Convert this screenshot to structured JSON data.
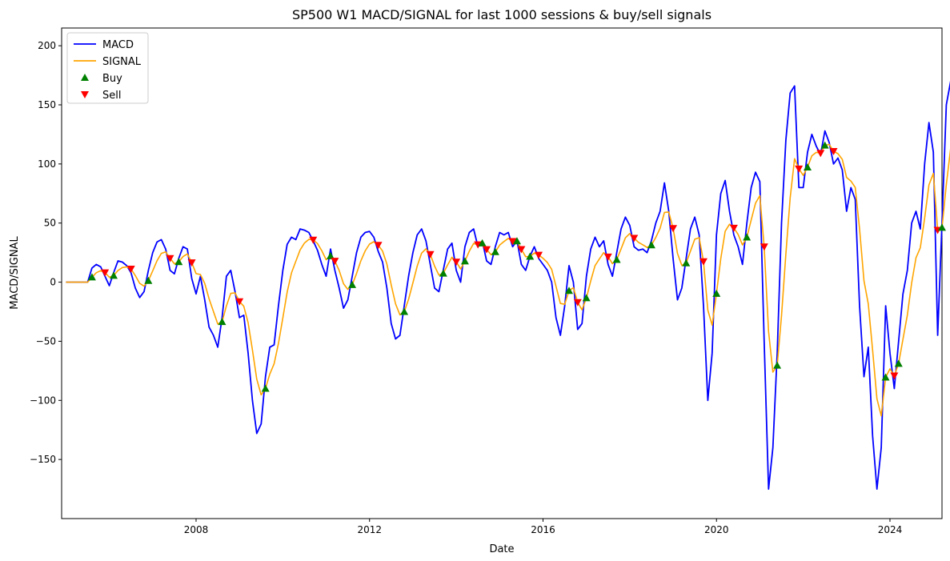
{
  "chart_data": {
    "type": "line",
    "title": "SP500 W1 MACD/SIGNAL for last 1000 sessions & buy/sell signals",
    "xlabel": "Date",
    "ylabel": "MACD/SIGNAL",
    "x_range": [
      2004.9,
      2025.2
    ],
    "ylim": [
      -200,
      215
    ],
    "x_ticks": [
      2008,
      2012,
      2016,
      2020,
      2024
    ],
    "x_tick_labels": [
      "2008",
      "2012",
      "2016",
      "2020",
      "2024"
    ],
    "y_ticks": [
      -150,
      -100,
      -50,
      0,
      50,
      100,
      150,
      200
    ],
    "y_tick_labels": [
      "−150",
      "−100",
      "−50",
      "0",
      "50",
      "100",
      "150",
      "200"
    ],
    "grid": false,
    "legend_position": "upper-left",
    "legend": [
      {
        "label": "MACD",
        "kind": "line",
        "color": "#0000ff"
      },
      {
        "label": "SIGNAL",
        "kind": "line",
        "color": "#ffa500"
      },
      {
        "label": "Buy",
        "kind": "marker-up",
        "color": "#008000"
      },
      {
        "label": "Sell",
        "kind": "marker-down",
        "color": "#ff0000"
      }
    ],
    "series": [
      {
        "name": "MACD",
        "color": "#0000ff",
        "points": [
          [
            2005.0,
            0
          ],
          [
            2005.5,
            0
          ],
          [
            2005.6,
            12
          ],
          [
            2005.7,
            15
          ],
          [
            2005.8,
            13
          ],
          [
            2005.9,
            5
          ],
          [
            2006.0,
            -3
          ],
          [
            2006.1,
            8
          ],
          [
            2006.2,
            18
          ],
          [
            2006.3,
            17
          ],
          [
            2006.4,
            14
          ],
          [
            2006.5,
            8
          ],
          [
            2006.6,
            -5
          ],
          [
            2006.7,
            -13
          ],
          [
            2006.8,
            -8
          ],
          [
            2006.9,
            10
          ],
          [
            2007.0,
            25
          ],
          [
            2007.1,
            34
          ],
          [
            2007.2,
            36
          ],
          [
            2007.3,
            28
          ],
          [
            2007.4,
            10
          ],
          [
            2007.5,
            7
          ],
          [
            2007.6,
            20
          ],
          [
            2007.7,
            30
          ],
          [
            2007.8,
            28
          ],
          [
            2007.9,
            3
          ],
          [
            2008.0,
            -10
          ],
          [
            2008.1,
            5
          ],
          [
            2008.2,
            -15
          ],
          [
            2008.3,
            -38
          ],
          [
            2008.4,
            -45
          ],
          [
            2008.5,
            -55
          ],
          [
            2008.6,
            -30
          ],
          [
            2008.7,
            5
          ],
          [
            2008.8,
            10
          ],
          [
            2008.9,
            -8
          ],
          [
            2009.0,
            -30
          ],
          [
            2009.1,
            -28
          ],
          [
            2009.2,
            -60
          ],
          [
            2009.3,
            -100
          ],
          [
            2009.4,
            -128
          ],
          [
            2009.5,
            -120
          ],
          [
            2009.6,
            -80
          ],
          [
            2009.7,
            -55
          ],
          [
            2009.8,
            -53
          ],
          [
            2009.9,
            -20
          ],
          [
            2010.0,
            10
          ],
          [
            2010.1,
            32
          ],
          [
            2010.2,
            38
          ],
          [
            2010.3,
            36
          ],
          [
            2010.4,
            45
          ],
          [
            2010.5,
            44
          ],
          [
            2010.6,
            42
          ],
          [
            2010.7,
            35
          ],
          [
            2010.8,
            27
          ],
          [
            2010.9,
            15
          ],
          [
            2011.0,
            5
          ],
          [
            2011.1,
            28
          ],
          [
            2011.2,
            10
          ],
          [
            2011.3,
            -5
          ],
          [
            2011.4,
            -22
          ],
          [
            2011.5,
            -15
          ],
          [
            2011.6,
            5
          ],
          [
            2011.7,
            25
          ],
          [
            2011.8,
            38
          ],
          [
            2011.9,
            42
          ],
          [
            2012.0,
            43
          ],
          [
            2012.1,
            38
          ],
          [
            2012.2,
            26
          ],
          [
            2012.3,
            17
          ],
          [
            2012.4,
            -5
          ],
          [
            2012.5,
            -35
          ],
          [
            2012.6,
            -48
          ],
          [
            2012.7,
            -45
          ],
          [
            2012.8,
            -20
          ],
          [
            2012.9,
            5
          ],
          [
            2013.0,
            25
          ],
          [
            2013.1,
            40
          ],
          [
            2013.2,
            45
          ],
          [
            2013.3,
            35
          ],
          [
            2013.4,
            15
          ],
          [
            2013.5,
            -5
          ],
          [
            2013.6,
            -8
          ],
          [
            2013.7,
            10
          ],
          [
            2013.8,
            28
          ],
          [
            2013.9,
            33
          ],
          [
            2014.0,
            10
          ],
          [
            2014.1,
            0
          ],
          [
            2014.2,
            30
          ],
          [
            2014.3,
            42
          ],
          [
            2014.4,
            45
          ],
          [
            2014.5,
            30
          ],
          [
            2014.6,
            35
          ],
          [
            2014.7,
            18
          ],
          [
            2014.8,
            15
          ],
          [
            2014.9,
            30
          ],
          [
            2015.0,
            42
          ],
          [
            2015.1,
            40
          ],
          [
            2015.2,
            42
          ],
          [
            2015.3,
            30
          ],
          [
            2015.4,
            35
          ],
          [
            2015.5,
            15
          ],
          [
            2015.6,
            10
          ],
          [
            2015.7,
            22
          ],
          [
            2015.8,
            30
          ],
          [
            2015.9,
            20
          ],
          [
            2016.0,
            15
          ],
          [
            2016.1,
            10
          ],
          [
            2016.2,
            0
          ],
          [
            2016.3,
            -30
          ],
          [
            2016.4,
            -45
          ],
          [
            2016.5,
            -20
          ],
          [
            2016.6,
            14
          ],
          [
            2016.7,
            0
          ],
          [
            2016.8,
            -40
          ],
          [
            2016.9,
            -35
          ],
          [
            2017.0,
            5
          ],
          [
            2017.1,
            28
          ],
          [
            2017.2,
            38
          ],
          [
            2017.3,
            30
          ],
          [
            2017.4,
            35
          ],
          [
            2017.5,
            15
          ],
          [
            2017.6,
            5
          ],
          [
            2017.7,
            25
          ],
          [
            2017.8,
            45
          ],
          [
            2017.9,
            55
          ],
          [
            2018.0,
            48
          ],
          [
            2018.1,
            30
          ],
          [
            2018.2,
            27
          ],
          [
            2018.3,
            28
          ],
          [
            2018.4,
            25
          ],
          [
            2018.5,
            35
          ],
          [
            2018.6,
            50
          ],
          [
            2018.7,
            60
          ],
          [
            2018.8,
            84
          ],
          [
            2018.9,
            60
          ],
          [
            2019.0,
            20
          ],
          [
            2019.1,
            -15
          ],
          [
            2019.2,
            -5
          ],
          [
            2019.3,
            20
          ],
          [
            2019.4,
            45
          ],
          [
            2019.5,
            55
          ],
          [
            2019.6,
            40
          ],
          [
            2019.7,
            -20
          ],
          [
            2019.8,
            -100
          ],
          [
            2019.9,
            -60
          ],
          [
            2020.0,
            40
          ],
          [
            2020.1,
            75
          ],
          [
            2020.2,
            86
          ],
          [
            2020.3,
            60
          ],
          [
            2020.4,
            40
          ],
          [
            2020.5,
            30
          ],
          [
            2020.6,
            15
          ],
          [
            2020.7,
            50
          ],
          [
            2020.8,
            80
          ],
          [
            2020.9,
            93
          ],
          [
            2021.0,
            85
          ],
          [
            2021.1,
            -50
          ],
          [
            2021.2,
            -175
          ],
          [
            2021.3,
            -140
          ],
          [
            2021.4,
            -60
          ],
          [
            2021.5,
            50
          ],
          [
            2021.6,
            120
          ],
          [
            2021.7,
            160
          ],
          [
            2021.8,
            166
          ],
          [
            2021.9,
            80
          ],
          [
            2022.0,
            80
          ],
          [
            2022.1,
            110
          ],
          [
            2022.2,
            125
          ],
          [
            2022.3,
            115
          ],
          [
            2022.4,
            108
          ],
          [
            2022.5,
            128
          ],
          [
            2022.6,
            118
          ],
          [
            2022.7,
            100
          ],
          [
            2022.8,
            105
          ],
          [
            2022.9,
            95
          ],
          [
            2023.0,
            60
          ],
          [
            2023.1,
            80
          ],
          [
            2023.2,
            70
          ],
          [
            2023.3,
            -20
          ],
          [
            2023.4,
            -80
          ],
          [
            2023.5,
            -55
          ],
          [
            2023.6,
            -130
          ],
          [
            2023.7,
            -175
          ],
          [
            2023.8,
            -140
          ],
          [
            2023.9,
            -20
          ],
          [
            2024.0,
            -60
          ],
          [
            2024.1,
            -90
          ],
          [
            2024.2,
            -50
          ],
          [
            2024.3,
            -10
          ],
          [
            2024.4,
            10
          ],
          [
            2024.5,
            50
          ],
          [
            2024.6,
            60
          ],
          [
            2024.7,
            45
          ],
          [
            2024.8,
            100
          ],
          [
            2024.9,
            135
          ],
          [
            2025.0,
            110
          ],
          [
            2025.1,
            -45
          ],
          [
            2025.2,
            50
          ],
          [
            2025.3,
            150
          ],
          [
            2025.4,
            170
          ],
          [
            2025.5,
            194
          ],
          [
            2025.55,
            194
          ]
        ]
      }
    ]
  }
}
